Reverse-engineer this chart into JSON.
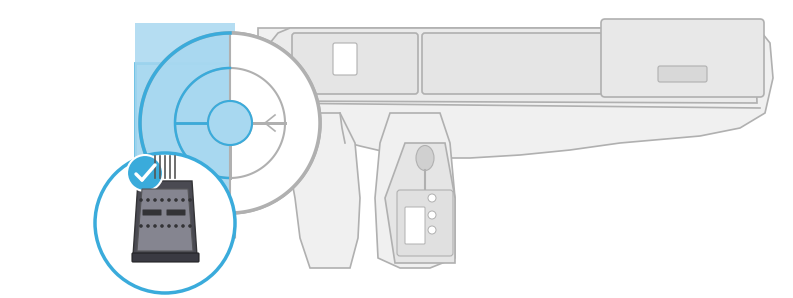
{
  "bg_color": "#ffffff",
  "blue_color": "#3aabdb",
  "blue_fill": "#a8d8f0",
  "dark_gray": "#4a4a4a",
  "medium_gray": "#6b6b6b",
  "light_gray": "#c8c8c8",
  "lighter_gray": "#e8e8e8",
  "car_outline_color": "#b0b0b0",
  "car_fill_color": "#f0f0f0",
  "figsize": [
    7.93,
    2.98
  ],
  "dpi": 100
}
